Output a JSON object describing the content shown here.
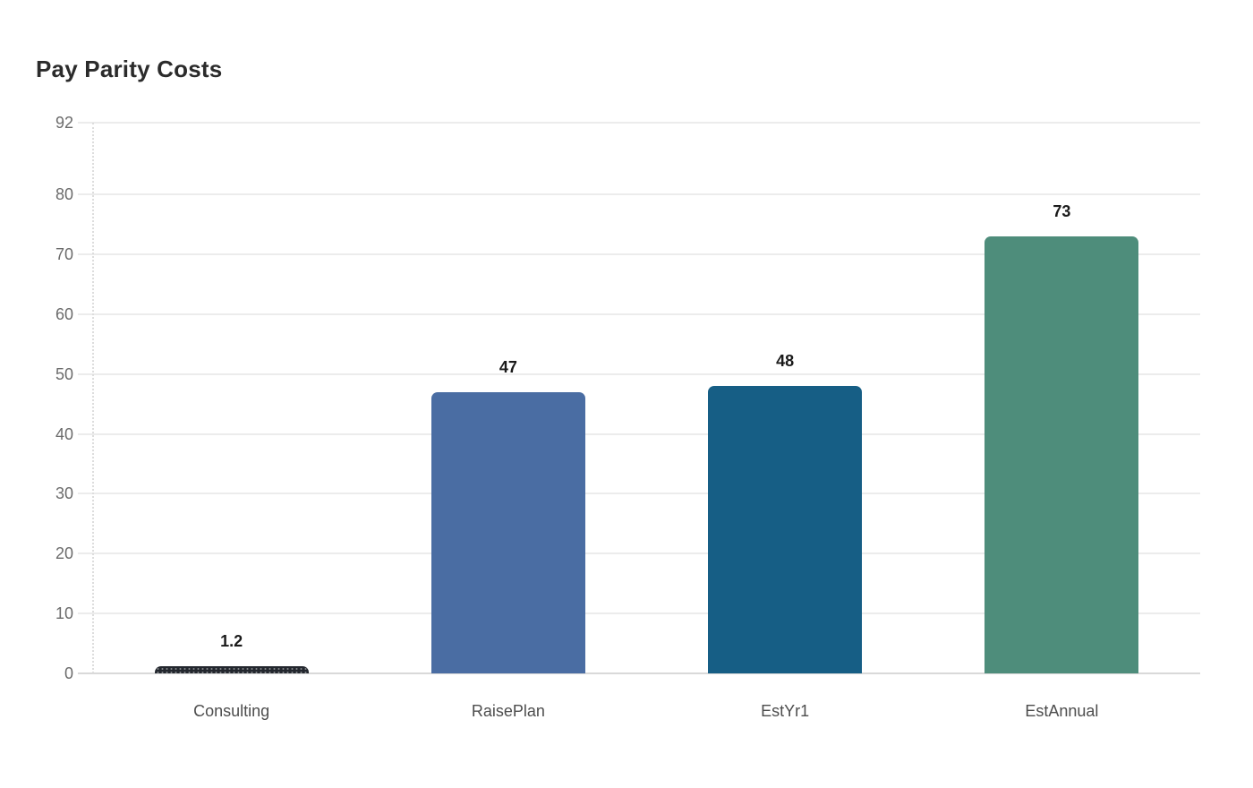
{
  "title": "Pay Parity Costs",
  "chart_data": {
    "type": "bar",
    "title": "Pay Parity Costs",
    "categories": [
      "Consulting",
      "RaisePlan",
      "EstYr1",
      "EstAnnual"
    ],
    "values": [
      1.2,
      47,
      48,
      73
    ],
    "value_labels": [
      "1.2",
      "47",
      "48",
      "73"
    ],
    "bar_colors": [
      "#23272e",
      "#4a6da3",
      "#165e85",
      "#4e8d7b"
    ],
    "bar_patterns": [
      "dotted",
      "solid",
      "solid",
      "solid"
    ],
    "xlabel": "",
    "ylabel": "",
    "ylim": [
      0,
      92
    ],
    "yticks": [
      0,
      10,
      20,
      30,
      40,
      50,
      60,
      70,
      80,
      92
    ],
    "grid": "horizontal-only",
    "legend": "none",
    "colors": {
      "background": "#ffffff",
      "grid": "#ececec",
      "baseline": "#d9d9d9",
      "axis_dash": "#dddddd",
      "tick_label": "#6b6b6b",
      "x_label": "#4d4d4d",
      "value_label": "#1a1a1a",
      "title": "#2b2b2b"
    }
  }
}
